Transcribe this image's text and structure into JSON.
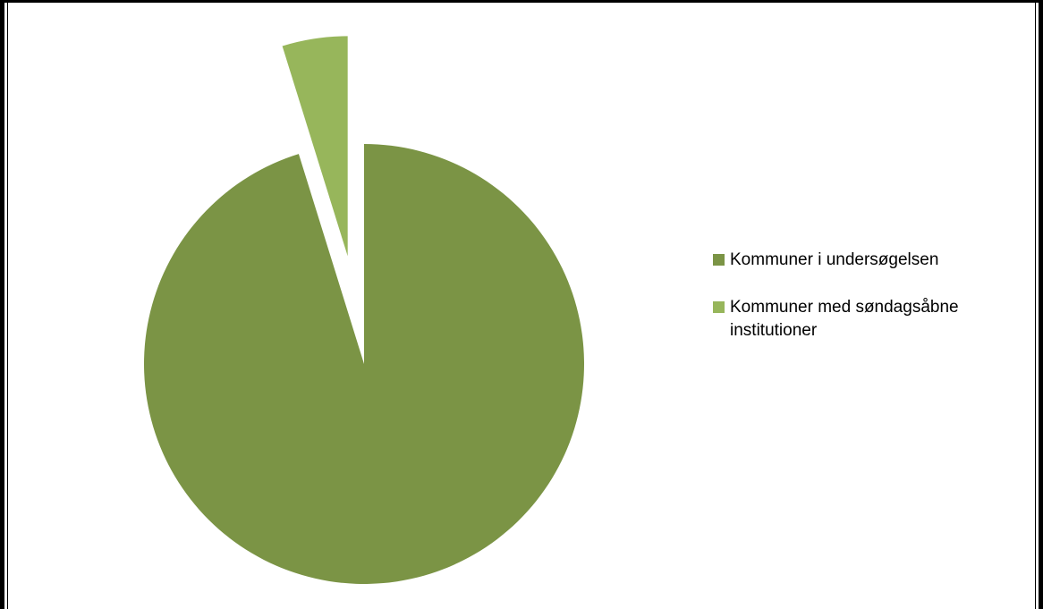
{
  "chart_data": {
    "type": "pie",
    "title": "",
    "categories": [
      "Kommuner i undersøgelsen",
      "Kommuner med søndagsåbne institutioner"
    ],
    "values": [
      95.2,
      4.8
    ],
    "colors": [
      "#7b9445",
      "#97b65b"
    ],
    "exploded": [
      false,
      true
    ],
    "legend_position": "right"
  },
  "legend": {
    "items": [
      {
        "label": "Kommuner i undersøgelsen",
        "color": "#7b9445"
      },
      {
        "label": "Kommuner med søndagsåbne institutioner",
        "color": "#97b65b"
      }
    ]
  }
}
